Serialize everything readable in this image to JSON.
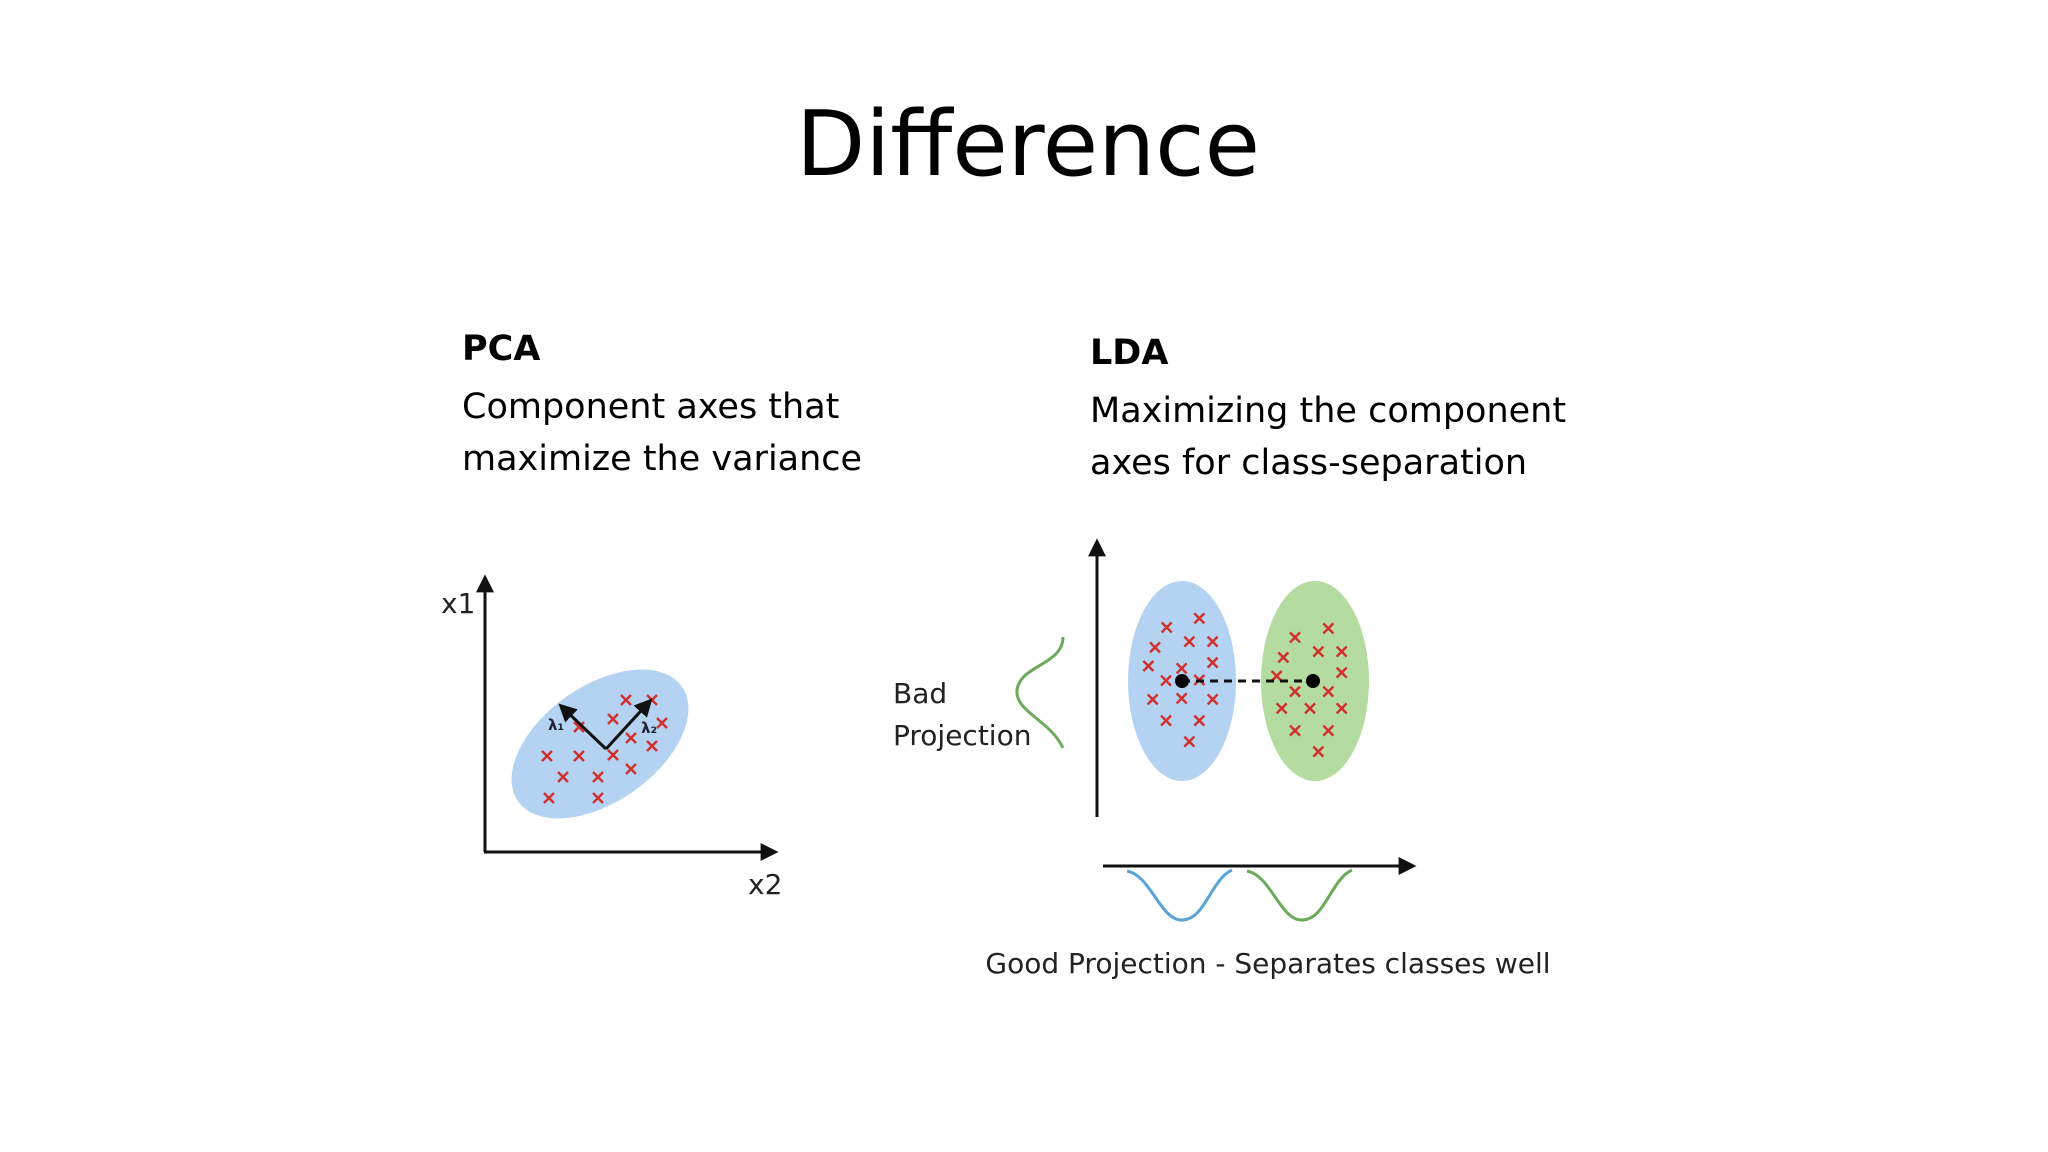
{
  "slide": {
    "title": "Difference",
    "pca": {
      "heading": "PCA",
      "description_lines": [
        "Component axes that",
        "maximize the variance"
      ],
      "axis_y_label": "x1",
      "axis_x_label": "x2",
      "eigen_labels": [
        "λ₁",
        "λ₂"
      ]
    },
    "lda": {
      "heading": "LDA",
      "description_lines": [
        "Maximizing the component",
        "axes for class-separation"
      ],
      "bad_projection_lines": [
        "Bad",
        "Projection"
      ],
      "good_projection_caption": "Good Projection - Separates classes well"
    },
    "colors": {
      "class1_fill": "#b4d3f2",
      "class2_fill": "#b5dca0",
      "marker": "#d0312d",
      "curve_green": "#6aaa5a",
      "curve_blue": "#5aa3d8"
    }
  }
}
